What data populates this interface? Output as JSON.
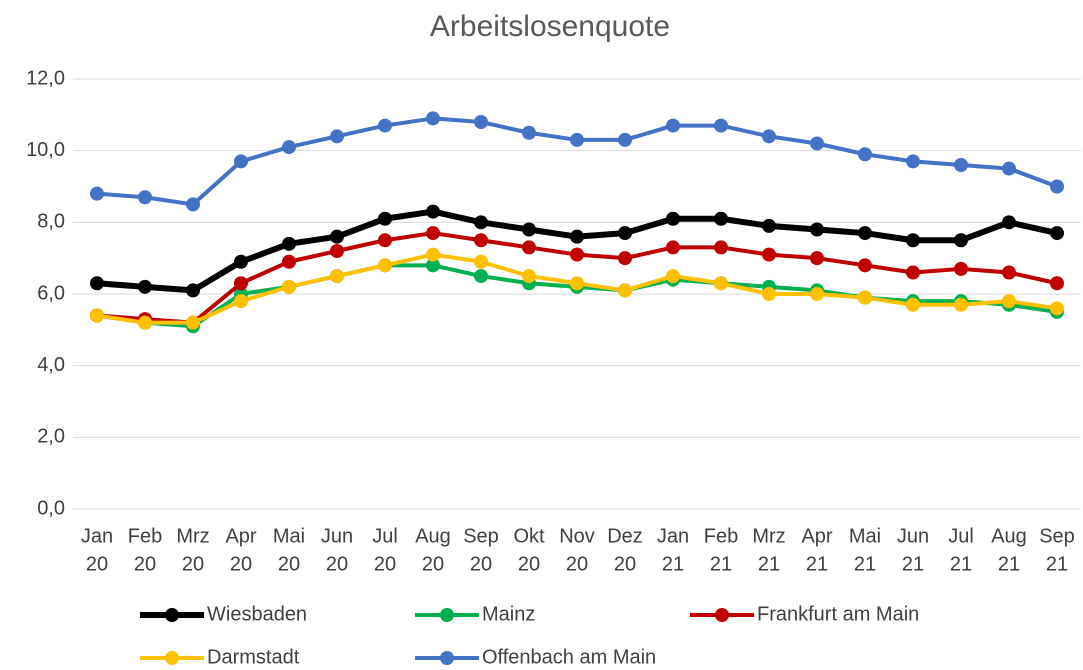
{
  "chart_data": {
    "type": "line",
    "title": "Arbeitslosenquote",
    "categories": [
      [
        "Jan",
        "20"
      ],
      [
        "Feb",
        "20"
      ],
      [
        "Mrz",
        "20"
      ],
      [
        "Apr",
        "20"
      ],
      [
        "Mai",
        "20"
      ],
      [
        "Jun",
        "20"
      ],
      [
        "Jul",
        "20"
      ],
      [
        "Aug",
        "20"
      ],
      [
        "Sep",
        "20"
      ],
      [
        "Okt",
        "20"
      ],
      [
        "Nov",
        "20"
      ],
      [
        "Dez",
        "20"
      ],
      [
        "Jan",
        "21"
      ],
      [
        "Feb",
        "21"
      ],
      [
        "Mrz",
        "21"
      ],
      [
        "Apr",
        "21"
      ],
      [
        "Mai",
        "21"
      ],
      [
        "Jun",
        "21"
      ],
      [
        "Jul",
        "21"
      ],
      [
        "Aug",
        "21"
      ],
      [
        "Sep",
        "21"
      ]
    ],
    "series": [
      {
        "name": "Wiesbaden",
        "color": "#000000",
        "values": [
          6.3,
          6.2,
          6.1,
          6.9,
          7.4,
          7.6,
          8.1,
          8.3,
          8.0,
          7.8,
          7.6,
          7.7,
          8.1,
          8.1,
          7.9,
          7.8,
          7.7,
          7.5,
          7.5,
          8.0,
          7.7
        ]
      },
      {
        "name": "Mainz",
        "color": "#00b050",
        "values": [
          5.4,
          5.2,
          5.1,
          6.0,
          6.2,
          6.5,
          6.8,
          6.8,
          6.5,
          6.3,
          6.2,
          6.1,
          6.4,
          6.3,
          6.2,
          6.1,
          5.9,
          5.8,
          5.8,
          5.7,
          5.5
        ]
      },
      {
        "name": "Frankfurt am Main",
        "color": "#c00000",
        "values": [
          5.4,
          5.3,
          5.2,
          6.3,
          6.9,
          7.2,
          7.5,
          7.7,
          7.5,
          7.3,
          7.1,
          7.0,
          7.3,
          7.3,
          7.1,
          7.0,
          6.8,
          6.6,
          6.7,
          6.6,
          6.3
        ]
      },
      {
        "name": "Darmstadt",
        "color": "#ffc000",
        "values": [
          5.4,
          5.2,
          5.2,
          5.8,
          6.2,
          6.5,
          6.8,
          7.1,
          6.9,
          6.5,
          6.3,
          6.1,
          6.5,
          6.3,
          6.0,
          6.0,
          5.9,
          5.7,
          5.7,
          5.8,
          5.6
        ]
      },
      {
        "name": "Offenbach am Main",
        "color": "#4472c4",
        "values": [
          8.8,
          8.7,
          8.5,
          9.7,
          10.1,
          10.4,
          10.7,
          10.9,
          10.8,
          10.5,
          10.3,
          10.3,
          10.7,
          10.7,
          10.4,
          10.2,
          9.9,
          9.7,
          9.6,
          9.5,
          9.0
        ]
      }
    ],
    "ylim": [
      0,
      12
    ],
    "yticks": [
      {
        "value": 0,
        "label": "0,0"
      },
      {
        "value": 2,
        "label": "2,0"
      },
      {
        "value": 4,
        "label": "4,0"
      },
      {
        "value": 6,
        "label": "6,0"
      },
      {
        "value": 8,
        "label": "8,0"
      },
      {
        "value": 10,
        "label": "10,0"
      },
      {
        "value": 12,
        "label": "12,0"
      }
    ],
    "grid": true
  }
}
